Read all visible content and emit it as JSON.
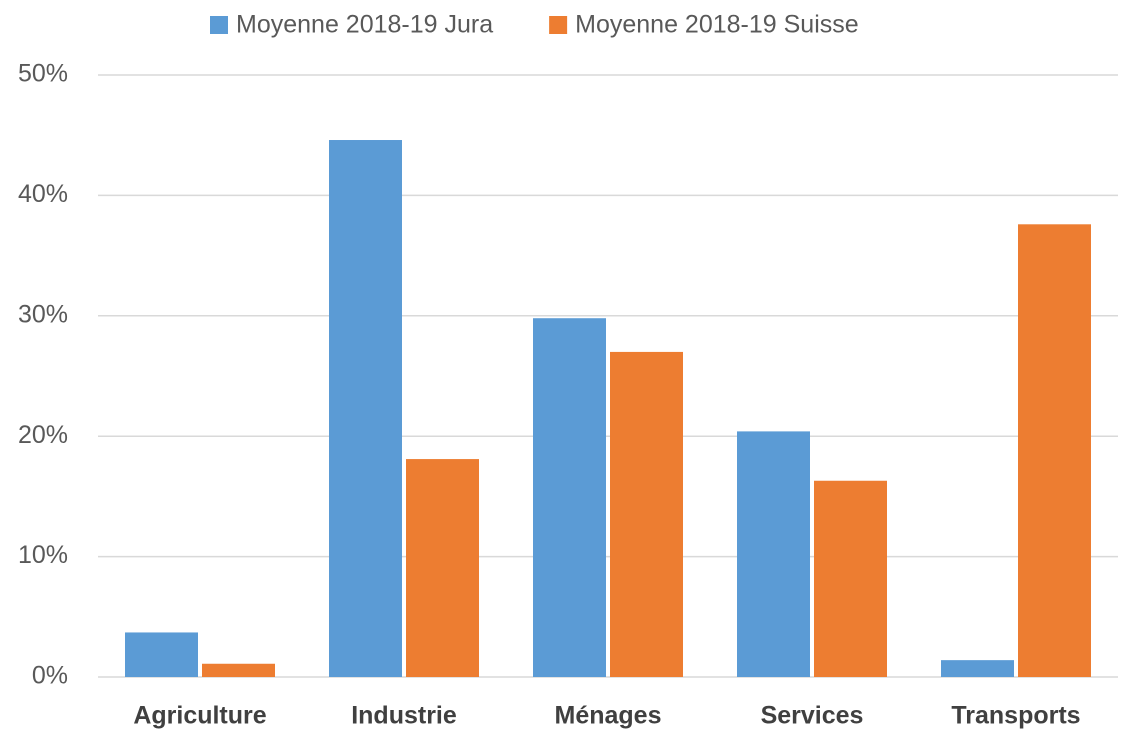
{
  "chart_data": {
    "type": "bar",
    "categories": [
      "Agriculture",
      "Industrie",
      "Ménages",
      "Services",
      "Transports"
    ],
    "series": [
      {
        "name": "Moyenne 2018-19 Jura",
        "color": "#5b9bd5",
        "values": [
          3.7,
          44.6,
          29.8,
          20.4,
          1.4
        ]
      },
      {
        "name": "Moyenne 2018-19 Suisse",
        "color": "#ed7d31",
        "values": [
          1.1,
          18.1,
          27.0,
          16.3,
          37.6
        ]
      }
    ],
    "ylim": [
      0,
      50
    ],
    "yticks": [
      {
        "value": 0,
        "label": "0%"
      },
      {
        "value": 10,
        "label": "10%"
      },
      {
        "value": 20,
        "label": "20%"
      },
      {
        "value": 30,
        "label": "30%"
      },
      {
        "value": 40,
        "label": "40%"
      },
      {
        "value": 50,
        "label": "50%"
      }
    ],
    "grid": true,
    "legend": "top"
  }
}
